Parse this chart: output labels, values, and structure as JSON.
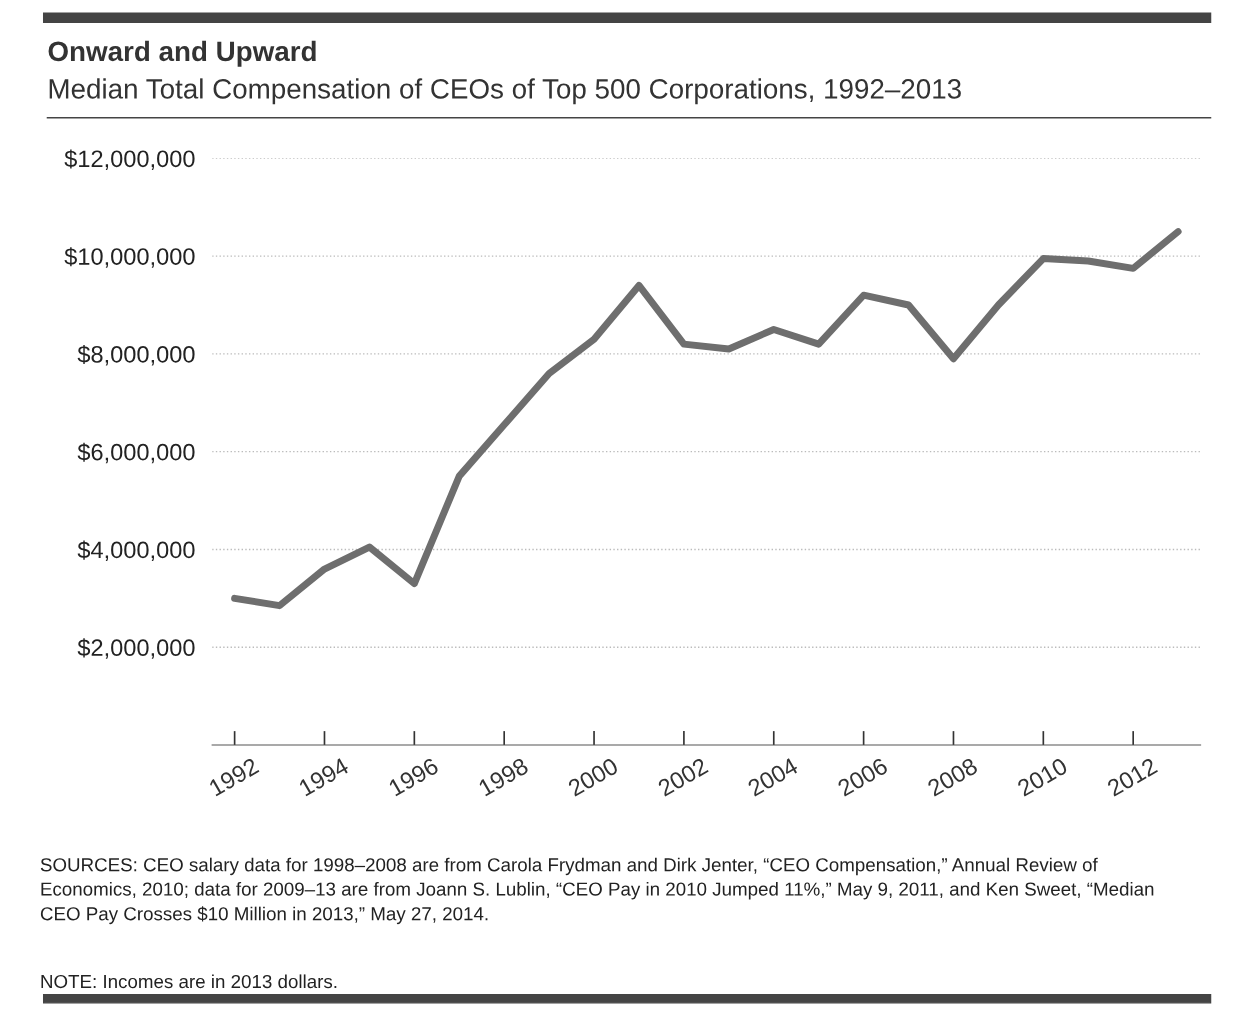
{
  "chart_data": {
    "type": "line",
    "title": "Onward and Upward",
    "subtitle": "Median Total Compensation of CEOs of Top 500 Corporations, 1992–2013",
    "x": [
      1992,
      1993,
      1994,
      1995,
      1996,
      1997,
      1998,
      1999,
      2000,
      2001,
      2002,
      2003,
      2004,
      2005,
      2006,
      2007,
      2008,
      2009,
      2010,
      2011,
      2012,
      2013
    ],
    "series": [
      {
        "color": "#6e6e6e",
        "values": [
          3000000,
          2850000,
          3600000,
          4050000,
          3300000,
          5500000,
          6550000,
          7600000,
          8300000,
          9400000,
          8200000,
          8100000,
          8500000,
          8200000,
          9200000,
          9000000,
          7900000,
          9000000,
          9950000,
          9900000,
          9750000,
          10500000
        ]
      }
    ],
    "xlim": [
      1991.5,
      2013.5
    ],
    "xticks": [
      1992,
      1994,
      1996,
      1998,
      2000,
      2002,
      2004,
      2006,
      2008,
      2010,
      2012
    ],
    "ylim": [
      0,
      12000000
    ],
    "yticks": [
      {
        "value": 2000000,
        "label": "$2,000,000"
      },
      {
        "value": 4000000,
        "label": "$4,000,000"
      },
      {
        "value": 6000000,
        "label": "$6,000,000"
      },
      {
        "value": 8000000,
        "label": "$8,000,000"
      },
      {
        "value": 10000000,
        "label": "$10,000,000"
      },
      {
        "value": 12000000,
        "label": "$12,000,000"
      }
    ],
    "grid": "y",
    "marker": "none",
    "line_style": "solid",
    "legend": false,
    "annotations": [
      "SOURCES: CEO salary data for 1998–2008 are from Carola Frydman and Dirk Jenter, “CEO Compensation,” Annual Review of Economics, 2010; data for 2009–13 are from Joann S. Lublin, “CEO Pay in 2010 Jumped 11%,” May 9, 2011, and Ken Sweet, “Median CEO Pay Crosses $10 Million in 2013,” May 27, 2014.",
      "NOTE: Incomes are in 2013 dollars."
    ]
  }
}
